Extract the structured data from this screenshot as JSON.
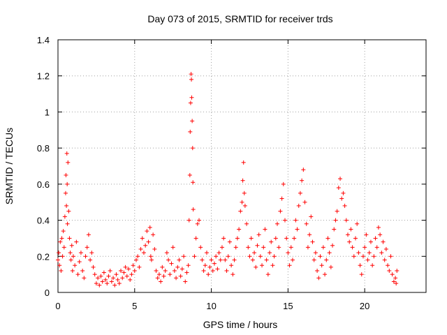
{
  "chart_data": {
    "type": "scatter",
    "title": "Day 073 of 2015, SRMTID for receiver trds",
    "xlabel": "GPS time / hours",
    "ylabel": "SRMTID / TECUs",
    "xlim": [
      0,
      24
    ],
    "ylim": [
      0,
      1.4
    ],
    "xticks": [
      0,
      5,
      10,
      15,
      20
    ],
    "xtick_labels": [
      "0",
      "5",
      "10",
      "15",
      "20"
    ],
    "yticks": [
      0,
      0.2,
      0.4,
      0.6,
      0.8,
      1.0,
      1.2,
      1.4
    ],
    "ytick_labels": [
      "0",
      "0.2",
      "0.4",
      "0.6",
      "0.8",
      "1",
      "1.2",
      "1.4"
    ],
    "grid": true,
    "marker": "+",
    "color": "#ff0000",
    "series": [
      {
        "name": "SRMTID",
        "points": [
          [
            0.0,
            0.18
          ],
          [
            0.05,
            0.22
          ],
          [
            0.1,
            0.15
          ],
          [
            0.15,
            0.28
          ],
          [
            0.2,
            0.12
          ],
          [
            0.25,
            0.3
          ],
          [
            0.3,
            0.2
          ],
          [
            0.35,
            0.34
          ],
          [
            0.4,
            0.25
          ],
          [
            0.45,
            0.42
          ],
          [
            0.5,
            0.55
          ],
          [
            0.52,
            0.65
          ],
          [
            0.55,
            0.48
          ],
          [
            0.58,
            0.77
          ],
          [
            0.6,
            0.6
          ],
          [
            0.62,
            0.38
          ],
          [
            0.65,
            0.72
          ],
          [
            0.7,
            0.45
          ],
          [
            0.75,
            0.3
          ],
          [
            0.8,
            0.22
          ],
          [
            0.85,
            0.18
          ],
          [
            0.9,
            0.26
          ],
          [
            0.95,
            0.12
          ],
          [
            1.0,
            0.2
          ],
          [
            1.1,
            0.15
          ],
          [
            1.2,
            0.28
          ],
          [
            1.3,
            0.1
          ],
          [
            1.4,
            0.17
          ],
          [
            1.5,
            0.22
          ],
          [
            1.6,
            0.12
          ],
          [
            1.7,
            0.08
          ],
          [
            1.8,
            0.2
          ],
          [
            1.9,
            0.25
          ],
          [
            2.0,
            0.32
          ],
          [
            2.1,
            0.18
          ],
          [
            2.2,
            0.22
          ],
          [
            2.3,
            0.14
          ],
          [
            2.4,
            0.1
          ],
          [
            2.5,
            0.05
          ],
          [
            2.6,
            0.08
          ],
          [
            2.7,
            0.04
          ],
          [
            2.8,
            0.09
          ],
          [
            2.9,
            0.06
          ],
          [
            3.0,
            0.11
          ],
          [
            3.1,
            0.07
          ],
          [
            3.2,
            0.05
          ],
          [
            3.3,
            0.09
          ],
          [
            3.4,
            0.12
          ],
          [
            3.5,
            0.06
          ],
          [
            3.6,
            0.08
          ],
          [
            3.7,
            0.04
          ],
          [
            3.8,
            0.1
          ],
          [
            3.9,
            0.07
          ],
          [
            4.0,
            0.05
          ],
          [
            4.1,
            0.12
          ],
          [
            4.2,
            0.08
          ],
          [
            4.3,
            0.11
          ],
          [
            4.4,
            0.14
          ],
          [
            4.5,
            0.09
          ],
          [
            4.6,
            0.13
          ],
          [
            4.7,
            0.07
          ],
          [
            4.8,
            0.1
          ],
          [
            4.9,
            0.15
          ],
          [
            5.0,
            0.12
          ],
          [
            5.1,
            0.18
          ],
          [
            5.2,
            0.2
          ],
          [
            5.3,
            0.14
          ],
          [
            5.4,
            0.24
          ],
          [
            5.5,
            0.3
          ],
          [
            5.6,
            0.22
          ],
          [
            5.7,
            0.26
          ],
          [
            5.8,
            0.34
          ],
          [
            5.9,
            0.28
          ],
          [
            6.0,
            0.36
          ],
          [
            6.05,
            0.2
          ],
          [
            6.1,
            0.18
          ],
          [
            6.2,
            0.32
          ],
          [
            6.3,
            0.24
          ],
          [
            6.4,
            0.12
          ],
          [
            6.5,
            0.08
          ],
          [
            6.6,
            0.1
          ],
          [
            6.7,
            0.06
          ],
          [
            6.8,
            0.14
          ],
          [
            6.9,
            0.09
          ],
          [
            7.0,
            0.12
          ],
          [
            7.1,
            0.22
          ],
          [
            7.2,
            0.18
          ],
          [
            7.3,
            0.1
          ],
          [
            7.4,
            0.16
          ],
          [
            7.5,
            0.25
          ],
          [
            7.6,
            0.12
          ],
          [
            7.7,
            0.08
          ],
          [
            7.8,
            0.14
          ],
          [
            7.9,
            0.18
          ],
          [
            8.0,
            0.09
          ],
          [
            8.1,
            0.13
          ],
          [
            8.2,
            0.2
          ],
          [
            8.3,
            0.06
          ],
          [
            8.4,
            0.11
          ],
          [
            8.5,
            0.15
          ],
          [
            8.55,
            0.4
          ],
          [
            8.6,
            0.65
          ],
          [
            8.62,
            0.89
          ],
          [
            8.65,
            1.05
          ],
          [
            8.68,
            1.21
          ],
          [
            8.7,
            1.18
          ],
          [
            8.72,
            1.08
          ],
          [
            8.75,
            0.95
          ],
          [
            8.78,
            0.8
          ],
          [
            8.8,
            0.61
          ],
          [
            8.82,
            0.46
          ],
          [
            8.9,
            0.2
          ],
          [
            9.0,
            0.3
          ],
          [
            9.1,
            0.38
          ],
          [
            9.2,
            0.4
          ],
          [
            9.3,
            0.25
          ],
          [
            9.4,
            0.18
          ],
          [
            9.5,
            0.12
          ],
          [
            9.6,
            0.15
          ],
          [
            9.7,
            0.22
          ],
          [
            9.8,
            0.1
          ],
          [
            9.9,
            0.14
          ],
          [
            10.0,
            0.18
          ],
          [
            10.1,
            0.12
          ],
          [
            10.2,
            0.16
          ],
          [
            10.3,
            0.2
          ],
          [
            10.4,
            0.13
          ],
          [
            10.5,
            0.22
          ],
          [
            10.6,
            0.18
          ],
          [
            10.7,
            0.25
          ],
          [
            10.8,
            0.3
          ],
          [
            10.9,
            0.18
          ],
          [
            11.0,
            0.12
          ],
          [
            11.1,
            0.2
          ],
          [
            11.2,
            0.28
          ],
          [
            11.3,
            0.15
          ],
          [
            11.4,
            0.1
          ],
          [
            11.5,
            0.18
          ],
          [
            11.6,
            0.25
          ],
          [
            11.7,
            0.3
          ],
          [
            11.8,
            0.35
          ],
          [
            11.9,
            0.45
          ],
          [
            12.0,
            0.5
          ],
          [
            12.05,
            0.62
          ],
          [
            12.1,
            0.72
          ],
          [
            12.15,
            0.55
          ],
          [
            12.2,
            0.48
          ],
          [
            12.3,
            0.38
          ],
          [
            12.4,
            0.25
          ],
          [
            12.5,
            0.2
          ],
          [
            12.6,
            0.3
          ],
          [
            12.7,
            0.18
          ],
          [
            12.8,
            0.22
          ],
          [
            12.9,
            0.14
          ],
          [
            13.0,
            0.26
          ],
          [
            13.1,
            0.32
          ],
          [
            13.2,
            0.2
          ],
          [
            13.3,
            0.15
          ],
          [
            13.4,
            0.25
          ],
          [
            13.5,
            0.35
          ],
          [
            13.6,
            0.18
          ],
          [
            13.7,
            0.1
          ],
          [
            13.8,
            0.22
          ],
          [
            13.9,
            0.28
          ],
          [
            14.0,
            0.15
          ],
          [
            14.1,
            0.2
          ],
          [
            14.2,
            0.3
          ],
          [
            14.3,
            0.38
          ],
          [
            14.4,
            0.25
          ],
          [
            14.5,
            0.45
          ],
          [
            14.6,
            0.52
          ],
          [
            14.7,
            0.6
          ],
          [
            14.8,
            0.4
          ],
          [
            14.9,
            0.3
          ],
          [
            15.0,
            0.22
          ],
          [
            15.1,
            0.15
          ],
          [
            15.2,
            0.25
          ],
          [
            15.3,
            0.18
          ],
          [
            15.4,
            0.3
          ],
          [
            15.5,
            0.4
          ],
          [
            15.6,
            0.35
          ],
          [
            15.7,
            0.48
          ],
          [
            15.8,
            0.55
          ],
          [
            15.9,
            0.62
          ],
          [
            16.0,
            0.68
          ],
          [
            16.1,
            0.5
          ],
          [
            16.2,
            0.38
          ],
          [
            16.3,
            0.25
          ],
          [
            16.4,
            0.32
          ],
          [
            16.5,
            0.42
          ],
          [
            16.6,
            0.28
          ],
          [
            16.7,
            0.18
          ],
          [
            16.8,
            0.22
          ],
          [
            16.9,
            0.12
          ],
          [
            17.0,
            0.08
          ],
          [
            17.1,
            0.2
          ],
          [
            17.2,
            0.15
          ],
          [
            17.3,
            0.25
          ],
          [
            17.4,
            0.1
          ],
          [
            17.5,
            0.18
          ],
          [
            17.6,
            0.3
          ],
          [
            17.7,
            0.22
          ],
          [
            17.8,
            0.14
          ],
          [
            17.9,
            0.26
          ],
          [
            18.0,
            0.35
          ],
          [
            18.1,
            0.4
          ],
          [
            18.2,
            0.45
          ],
          [
            18.3,
            0.58
          ],
          [
            18.4,
            0.63
          ],
          [
            18.5,
            0.52
          ],
          [
            18.6,
            0.55
          ],
          [
            18.7,
            0.48
          ],
          [
            18.8,
            0.4
          ],
          [
            18.9,
            0.32
          ],
          [
            19.0,
            0.28
          ],
          [
            19.1,
            0.35
          ],
          [
            19.2,
            0.25
          ],
          [
            19.3,
            0.2
          ],
          [
            19.4,
            0.3
          ],
          [
            19.5,
            0.38
          ],
          [
            19.6,
            0.22
          ],
          [
            19.7,
            0.15
          ],
          [
            19.8,
            0.1
          ],
          [
            19.9,
            0.2
          ],
          [
            20.0,
            0.25
          ],
          [
            20.1,
            0.32
          ],
          [
            20.2,
            0.18
          ],
          [
            20.3,
            0.22
          ],
          [
            20.4,
            0.28
          ],
          [
            20.5,
            0.15
          ],
          [
            20.6,
            0.2
          ],
          [
            20.7,
            0.3
          ],
          [
            20.8,
            0.25
          ],
          [
            20.9,
            0.36
          ],
          [
            21.0,
            0.32
          ],
          [
            21.1,
            0.22
          ],
          [
            21.2,
            0.28
          ],
          [
            21.3,
            0.18
          ],
          [
            21.4,
            0.24
          ],
          [
            21.5,
            0.15
          ],
          [
            21.6,
            0.12
          ],
          [
            21.7,
            0.2
          ],
          [
            21.8,
            0.1
          ],
          [
            21.9,
            0.06
          ],
          [
            22.0,
            0.08
          ],
          [
            22.05,
            0.05
          ],
          [
            22.1,
            0.12
          ]
        ]
      }
    ]
  }
}
